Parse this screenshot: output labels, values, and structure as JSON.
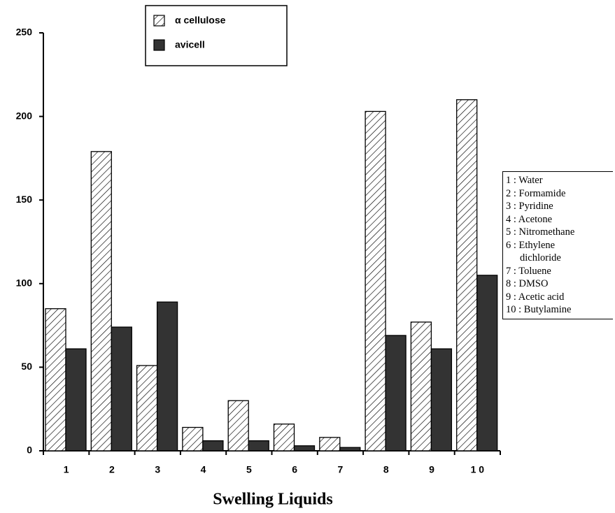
{
  "chart_data": {
    "type": "bar",
    "x_label": "Swelling Liquids",
    "categories": [
      "1",
      "2",
      "3",
      "4",
      "5",
      "6",
      "7",
      "8",
      "9",
      "1 0"
    ],
    "series": [
      {
        "name": "α cellulose",
        "color": "#ffffff",
        "pattern": "hatch",
        "values": [
          85,
          179,
          51,
          14,
          30,
          16,
          8,
          203,
          77,
          210
        ]
      },
      {
        "name": "avicell",
        "color": "#333333",
        "values": [
          61,
          74,
          89,
          6,
          6,
          3,
          2,
          69,
          61,
          105
        ]
      }
    ],
    "ylim": [
      0,
      250
    ],
    "yticks": [
      0,
      50,
      100,
      150,
      200,
      250
    ],
    "key": [
      "1 : Water",
      "2 : Formamide",
      "3 : Pyridine",
      "4 : Acetone",
      "5 : Nitromethane",
      "6 : Ethylene dichloride",
      "7 : Toluene",
      "8 : DMSO",
      "9 : Acetic acid",
      "10 : Butylamine"
    ]
  }
}
